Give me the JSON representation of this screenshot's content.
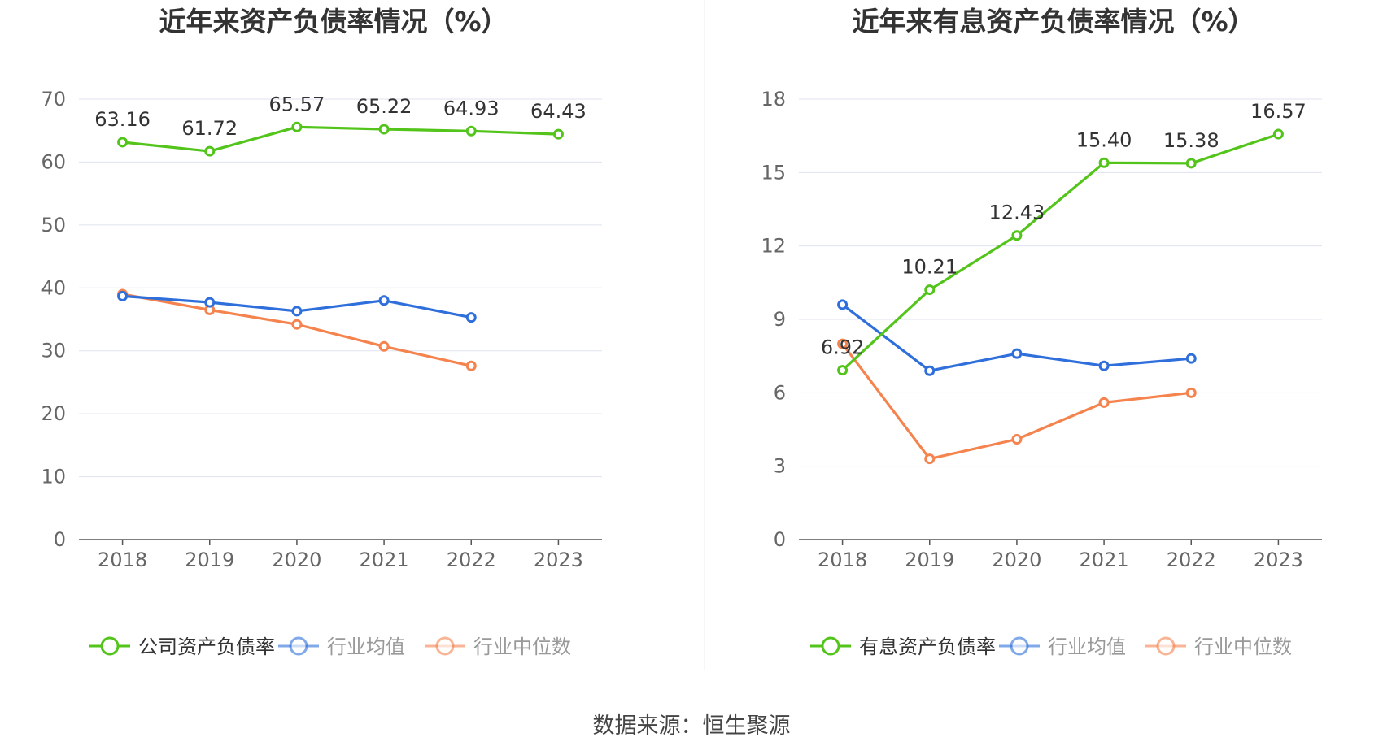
{
  "source": "数据来源：恒生聚源",
  "chart_data": [
    {
      "type": "line",
      "title": "近年来资产负债率情况（%）",
      "categories": [
        "2018",
        "2019",
        "2020",
        "2021",
        "2022",
        "2023"
      ],
      "ylim": [
        0,
        70
      ],
      "yticks": [
        0,
        10,
        20,
        30,
        40,
        50,
        60,
        70
      ],
      "grid": true,
      "legend_position": "bottom",
      "series": [
        {
          "name": "公司资产负债率",
          "color": "#52c41a",
          "values": [
            63.16,
            61.72,
            65.57,
            65.22,
            64.93,
            64.43
          ],
          "labels": [
            "63.16",
            "61.72",
            "65.57",
            "65.22",
            "64.93",
            "64.43"
          ],
          "show_labels": true
        },
        {
          "name": "行业均值",
          "color": "#2f6fdb",
          "values": [
            38.7,
            37.7,
            36.3,
            38.0,
            35.3,
            null
          ],
          "show_labels": false
        },
        {
          "name": "行业中位数",
          "color": "#f5834e",
          "values": [
            39.0,
            36.5,
            34.2,
            30.7,
            27.6,
            null
          ],
          "show_labels": false
        }
      ]
    },
    {
      "type": "line",
      "title": "近年来有息资产负债率情况（%）",
      "categories": [
        "2018",
        "2019",
        "2020",
        "2021",
        "2022",
        "2023"
      ],
      "ylim": [
        0,
        18
      ],
      "yticks": [
        0,
        3,
        6,
        9,
        12,
        15,
        18
      ],
      "grid": true,
      "legend_position": "bottom",
      "series": [
        {
          "name": "有息资产负债率",
          "color": "#52c41a",
          "values": [
            6.92,
            10.21,
            12.43,
            15.4,
            15.38,
            16.57
          ],
          "labels": [
            "6.92",
            "10.21",
            "12.43",
            "15.40",
            "15.38",
            "16.57"
          ],
          "show_labels": true
        },
        {
          "name": "行业均值",
          "color": "#2f6fdb",
          "values": [
            9.6,
            6.9,
            7.6,
            7.1,
            7.4,
            null
          ],
          "show_labels": false
        },
        {
          "name": "行业中位数",
          "color": "#f5834e",
          "values": [
            8.0,
            3.3,
            4.1,
            5.6,
            6.0,
            null
          ],
          "show_labels": false
        }
      ]
    }
  ]
}
